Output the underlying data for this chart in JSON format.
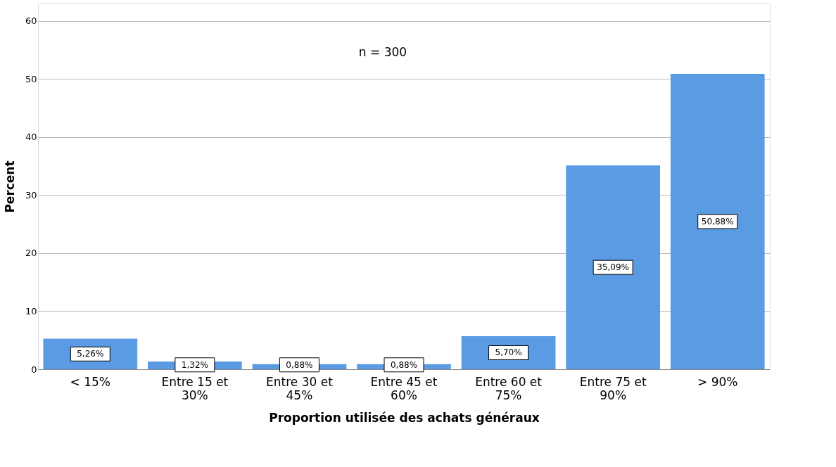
{
  "chart_data": {
    "type": "bar",
    "xlabel": "Proportion utilisée des achats généraux",
    "ylabel": "Percent",
    "categories": [
      "< 15%",
      "Entre 15 et 30%",
      "Entre 30 et 45%",
      "Entre 45 et 60%",
      "Entre 60 et 75%",
      "Entre 75 et 90%",
      "> 90%"
    ],
    "values": [
      5.26,
      1.32,
      0.88,
      0.88,
      5.7,
      35.09,
      50.88
    ],
    "value_labels": [
      "5,26%",
      "1,32%",
      "0,88%",
      "0,88%",
      "5,70%",
      "35,09%",
      "50,88%"
    ],
    "color": "#5b9be4",
    "ylim": [
      0,
      63
    ],
    "yticks": [
      0,
      10,
      20,
      30,
      40,
      50,
      60
    ],
    "grid": "y",
    "annotations": [
      "n = 300"
    ]
  }
}
